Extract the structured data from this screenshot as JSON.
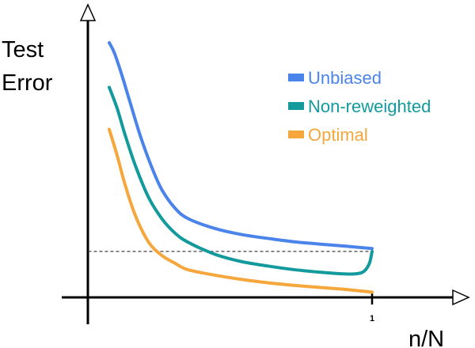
{
  "chart_data": {
    "type": "line",
    "ylabel_lines": [
      "Test",
      "Error"
    ],
    "xlabel": "n/N",
    "x_ticks": [
      {
        "value": 1,
        "label": "1"
      }
    ],
    "xlim": [
      -0.05,
      1.4
    ],
    "ylim": [
      0,
      1
    ],
    "grid": false,
    "legend_position": "top-right",
    "reference_line": {
      "y": 0.175,
      "x_from": 0,
      "x_to": 1,
      "style": "dashed"
    },
    "series": [
      {
        "name": "Unbiased",
        "color": "#4a84ea",
        "x": [
          0.0,
          0.02,
          0.05,
          0.08,
          0.12,
          0.16,
          0.2,
          0.25,
          0.3,
          0.4,
          0.5,
          0.6,
          0.7,
          0.8,
          0.9,
          1.0
        ],
        "y": [
          0.97,
          0.93,
          0.84,
          0.74,
          0.61,
          0.5,
          0.41,
          0.34,
          0.3,
          0.263,
          0.24,
          0.225,
          0.212,
          0.203,
          0.195,
          0.186
        ]
      },
      {
        "name": "Non-reweighted",
        "color": "#139a9c",
        "x": [
          0.0,
          0.03,
          0.06,
          0.1,
          0.15,
          0.2,
          0.25,
          0.3,
          0.4,
          0.5,
          0.6,
          0.7,
          0.8,
          0.88,
          0.94,
          0.97,
          0.99,
          1.0
        ],
        "y": [
          0.8,
          0.72,
          0.62,
          0.5,
          0.38,
          0.3,
          0.245,
          0.21,
          0.165,
          0.137,
          0.12,
          0.106,
          0.096,
          0.09,
          0.09,
          0.1,
          0.13,
          0.175
        ]
      },
      {
        "name": "Optimal",
        "color": "#f5a73c",
        "x": [
          0.0,
          0.03,
          0.06,
          0.1,
          0.15,
          0.2,
          0.25,
          0.3,
          0.4,
          0.5,
          0.6,
          0.7,
          0.8,
          0.9,
          1.0
        ],
        "y": [
          0.64,
          0.54,
          0.43,
          0.31,
          0.21,
          0.16,
          0.13,
          0.105,
          0.085,
          0.069,
          0.056,
          0.046,
          0.038,
          0.03,
          0.02
        ]
      }
    ]
  }
}
